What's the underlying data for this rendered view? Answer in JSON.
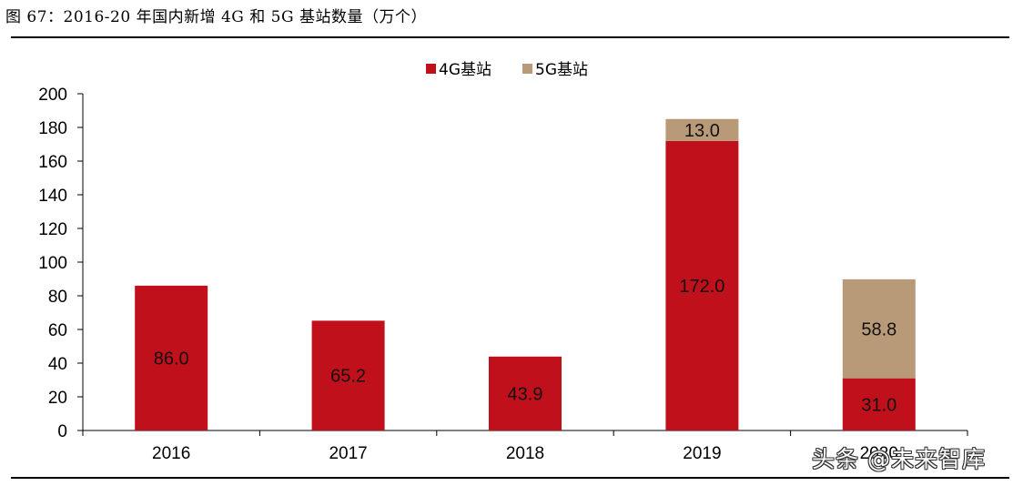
{
  "figure": {
    "title": "图 67：2016-20 年国内新增 4G 和 5G 基站数量（万个）"
  },
  "watermark": "头条 @未来智库",
  "chart_data": {
    "type": "bar",
    "stacked": true,
    "categories": [
      "2016",
      "2017",
      "2018",
      "2019",
      "2020"
    ],
    "series": [
      {
        "name": "4G基站",
        "color": "#c0101b",
        "values": [
          86.0,
          65.2,
          43.9,
          172.0,
          31.0
        ],
        "labels": [
          "86.0",
          "65.2",
          "43.9",
          "172.0",
          "31.0"
        ]
      },
      {
        "name": "5G基站",
        "color": "#b99a78",
        "values": [
          0,
          0,
          0,
          13.0,
          58.8
        ],
        "labels": [
          "",
          "",
          "",
          "13.0",
          "58.8"
        ]
      }
    ],
    "ylim": [
      0,
      200
    ],
    "yticks": [
      "0",
      "20",
      "40",
      "60",
      "80",
      "100",
      "120",
      "140",
      "160",
      "180",
      "200"
    ],
    "legend_position": "top-center",
    "grid": false
  }
}
